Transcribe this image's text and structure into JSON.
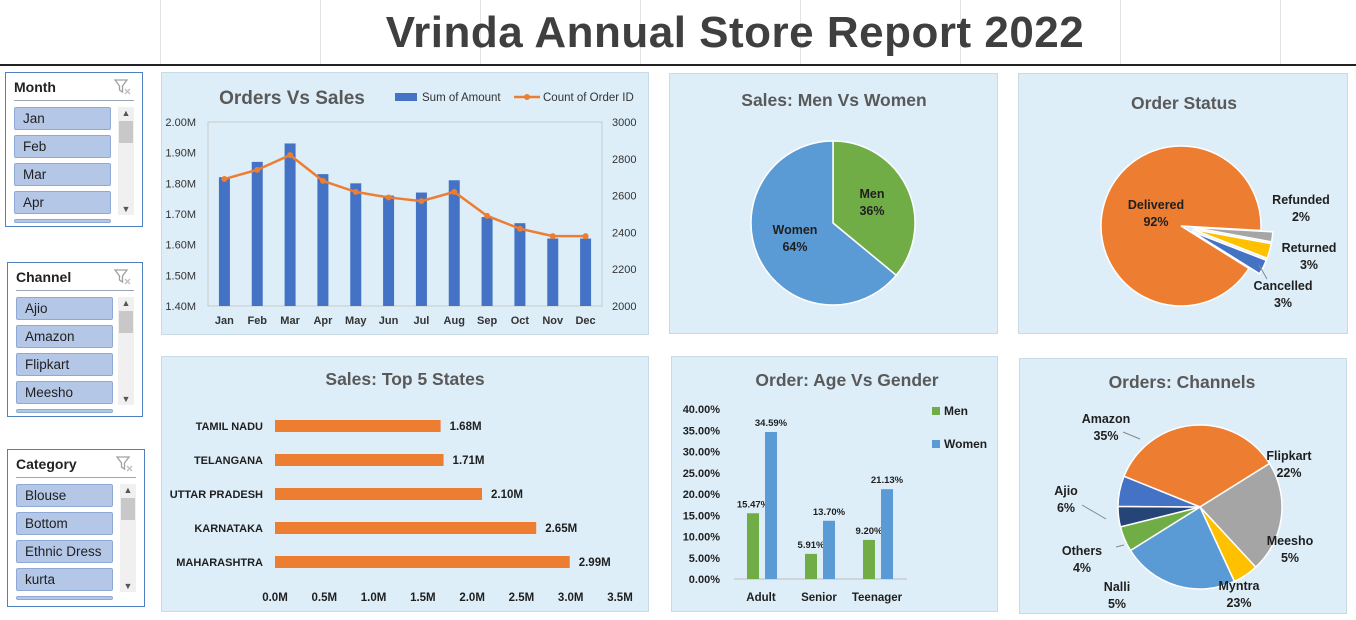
{
  "title": "Vrinda Annual Store Report 2022",
  "slicers": [
    {
      "name": "Month",
      "items": [
        "Jan",
        "Feb",
        "Mar",
        "Apr"
      ]
    },
    {
      "name": "Channel",
      "items": [
        "Ajio",
        "Amazon",
        "Flipkart",
        "Meesho"
      ]
    },
    {
      "name": "Category",
      "items": [
        "Blouse",
        "Bottom",
        "Ethnic Dress",
        "kurta"
      ]
    }
  ],
  "chart_data": [
    {
      "type": "bar",
      "title": "Orders Vs Sales",
      "categories": [
        "Jan",
        "Feb",
        "Mar",
        "Apr",
        "May",
        "Jun",
        "Jul",
        "Aug",
        "Sep",
        "Oct",
        "Nov",
        "Dec"
      ],
      "series": [
        {
          "name": "Sum of Amount",
          "type": "bar",
          "axis": "left",
          "color": "#4472c4",
          "values": [
            1.82,
            1.87,
            1.93,
            1.83,
            1.8,
            1.76,
            1.77,
            1.81,
            1.69,
            1.67,
            1.62,
            1.62
          ]
        },
        {
          "name": "Count of Order ID",
          "type": "line",
          "axis": "right",
          "color": "#ed7d31",
          "values": [
            2690,
            2740,
            2820,
            2680,
            2620,
            2590,
            2570,
            2620,
            2490,
            2420,
            2380,
            2380
          ]
        }
      ],
      "y_left": {
        "ylim": [
          1.4,
          2.0
        ],
        "ticks": [
          "1.40M",
          "1.50M",
          "1.60M",
          "1.70M",
          "1.80M",
          "1.90M",
          "2.00M"
        ]
      },
      "y_right": {
        "ylim": [
          2000,
          3000
        ],
        "ticks": [
          "2000",
          "2200",
          "2400",
          "2600",
          "2800",
          "3000"
        ]
      },
      "legend": "top-right"
    },
    {
      "type": "pie",
      "title": "Sales: Men Vs Women",
      "labels": [
        "Men",
        "Women"
      ],
      "values": [
        36,
        64
      ],
      "value_labels": [
        "36%",
        "64%"
      ],
      "colors": [
        "#70ad47",
        "#5b9bd5"
      ]
    },
    {
      "type": "pie",
      "title": "Order Status",
      "labels": [
        "Delivered",
        "Refunded",
        "Returned",
        "Cancelled"
      ],
      "values": [
        92,
        2,
        3,
        3
      ],
      "value_labels": [
        "92%",
        "2%",
        "3%",
        "3%"
      ],
      "colors": [
        "#ed7d31",
        "#a5a5a5",
        "#ffc000",
        "#4472c4"
      ]
    },
    {
      "type": "bar",
      "orientation": "horizontal",
      "title": "Sales: Top 5 States",
      "categories": [
        "TAMIL NADU",
        "TELANGANA",
        "UTTAR PRADESH",
        "KARNATAKA",
        "MAHARASHTRA"
      ],
      "values": [
        1.68,
        1.71,
        2.1,
        2.65,
        2.99
      ],
      "value_labels": [
        "1.68M",
        "1.71M",
        "2.10M",
        "2.65M",
        "2.99M"
      ],
      "xlim": [
        0,
        3.5
      ],
      "x_ticks": [
        "0.0M",
        "0.5M",
        "1.0M",
        "1.5M",
        "2.0M",
        "2.5M",
        "3.0M",
        "3.5M"
      ],
      "color": "#ed7d31"
    },
    {
      "type": "bar",
      "title": "Order: Age Vs Gender",
      "categories": [
        "Adult",
        "Senior",
        "Teenager"
      ],
      "series": [
        {
          "name": "Men",
          "color": "#70ad47",
          "values": [
            15.47,
            5.91,
            9.2
          ],
          "value_labels": [
            "15.47%",
            "5.91%",
            "9.20%"
          ]
        },
        {
          "name": "Women",
          "color": "#5b9bd5",
          "values": [
            34.59,
            13.7,
            21.13
          ],
          "value_labels": [
            "34.59%",
            "13.70%",
            "21.13%"
          ]
        }
      ],
      "ylim": [
        0,
        40
      ],
      "y_ticks": [
        "0.00%",
        "5.00%",
        "10.00%",
        "15.00%",
        "20.00%",
        "25.00%",
        "30.00%",
        "35.00%",
        "40.00%"
      ],
      "legend": "right"
    },
    {
      "type": "pie",
      "title": "Orders: Channels",
      "labels": [
        "Amazon",
        "Flipkart",
        "Meesho",
        "Myntra",
        "Nalli",
        "Others",
        "Ajio"
      ],
      "values": [
        35,
        22,
        5,
        23,
        5,
        4,
        6
      ],
      "value_labels": [
        "35%",
        "22%",
        "5%",
        "23%",
        "5%",
        "4%",
        "6%"
      ],
      "colors": [
        "#ed7d31",
        "#a5a5a5",
        "#ffc000",
        "#5b9bd5",
        "#70ad47",
        "#264478",
        "#4472c4"
      ]
    }
  ]
}
